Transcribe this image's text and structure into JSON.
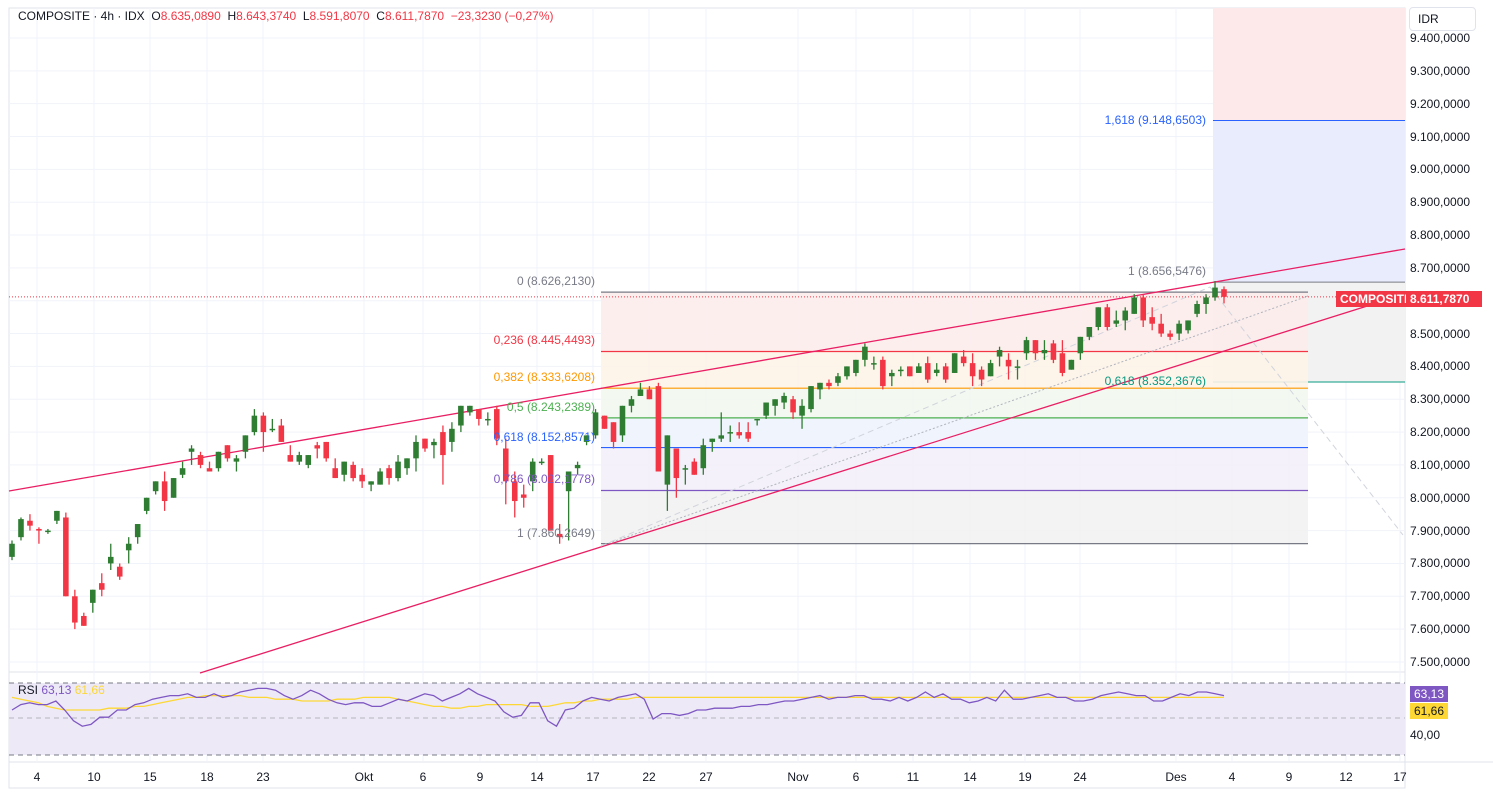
{
  "header": {
    "symbol": "COMPOSITE",
    "interval": "4h",
    "exchange": "IDX",
    "title": "COMPOSITE · 4h · IDX",
    "open_label": "O",
    "open": "8.635,0890",
    "high_label": "H",
    "high": "8.643,3740",
    "low_label": "L",
    "low": "8.591,8070",
    "close_label": "C",
    "close": "8.611,7870",
    "change": "−23,3230 (−0,27%)"
  },
  "currency_button": "IDR",
  "price_axis": {
    "labels": [
      "9.400,0000",
      "9.300,0000",
      "9.200,0000",
      "9.100,0000",
      "9.000,0000",
      "8.900,0000",
      "8.800,0000",
      "8.700,0000",
      "8.500,0000",
      "8.400,0000",
      "8.300,0000",
      "8.200,0000",
      "8.100,0000",
      "8.000,0000",
      "7.900,0000",
      "7.800,0000",
      "7.700,0000",
      "7.600,0000",
      "7.500,0000"
    ],
    "last_price": "8.611,7870",
    "symbol_badge": "COMPOSITE"
  },
  "fib_retracement": {
    "levels": [
      {
        "label": "0 (8.626,2130)",
        "color": "#787b86"
      },
      {
        "label": "0,236 (8.445,4493)",
        "color": "#f23645"
      },
      {
        "label": "0,382 (8.333,6208)",
        "color": "#ff9800"
      },
      {
        "label": "0,5 (8.243,2389)",
        "color": "#4caf50"
      },
      {
        "label": "0,618 (8.152,8571)",
        "color": "#2962ff"
      },
      {
        "label": "0,786 (8.022,1778)",
        "color": "#7e57c2"
      },
      {
        "label": "1 (7.860,2649)",
        "color": "#787b86"
      }
    ]
  },
  "fib_extension": {
    "levels": [
      {
        "label": "1,618 (9.148,6503)",
        "color": "#2962ff"
      },
      {
        "label": "1 (8.656,5476)",
        "color": "#787b86"
      },
      {
        "label": "0,618 (8.352,3676)",
        "color": "#089981"
      }
    ]
  },
  "rsi": {
    "name": "RSI",
    "value": "63,13",
    "ma_value": "61,66",
    "axis_label": "40,00",
    "rsi_color": "#7e57c2",
    "ma_color": "#fdd835"
  },
  "time_axis": {
    "labels": [
      "4",
      "10",
      "15",
      "18",
      "23",
      "Okt",
      "6",
      "9",
      "14",
      "17",
      "22",
      "27",
      "Nov",
      "6",
      "11",
      "14",
      "19",
      "24",
      "Des",
      "4",
      "9",
      "12",
      "17"
    ]
  },
  "colors": {
    "up": "#2e7d32",
    "down": "#f23645",
    "channel": "#e91e63"
  },
  "chart_data": {
    "type": "candlestick",
    "title": "COMPOSITE · 4h · IDX",
    "ylabel": "IDR",
    "ylim": [
      7450,
      9430
    ],
    "x_ticks": [
      "4",
      "10",
      "15",
      "18",
      "23",
      "Okt",
      "6",
      "9",
      "14",
      "17",
      "22",
      "27",
      "Nov",
      "6",
      "11",
      "14",
      "19",
      "24",
      "Des",
      "4",
      "9",
      "12",
      "17"
    ],
    "last": {
      "open": 8635.089,
      "high": 8643.374,
      "low": 8591.807,
      "close": 8611.787,
      "change": -23.323,
      "change_pct": -0.27
    },
    "candles": [
      [
        7820,
        7870,
        7810,
        7860
      ],
      [
        7880,
        7940,
        7870,
        7935
      ],
      [
        7930,
        7950,
        7900,
        7915
      ],
      [
        7905,
        7910,
        7860,
        7900
      ],
      [
        7900,
        7905,
        7890,
        7900
      ],
      [
        7930,
        7960,
        7920,
        7960
      ],
      [
        7940,
        7955,
        7700,
        7700
      ],
      [
        7700,
        7720,
        7600,
        7620
      ],
      [
        7640,
        7650,
        7610,
        7610
      ],
      [
        7680,
        7720,
        7650,
        7720
      ],
      [
        7740,
        7770,
        7700,
        7720
      ],
      [
        7800,
        7860,
        7780,
        7820
      ],
      [
        7790,
        7800,
        7750,
        7760
      ],
      [
        7840,
        7880,
        7800,
        7860
      ],
      [
        7880,
        7910,
        7860,
        7920
      ],
      [
        7960,
        7990,
        7950,
        8000
      ],
      [
        8020,
        8050,
        8010,
        8050
      ],
      [
        8050,
        8080,
        7960,
        7990
      ],
      [
        8000,
        8060,
        8000,
        8060
      ],
      [
        8070,
        8110,
        8060,
        8090
      ],
      [
        8140,
        8160,
        8100,
        8150
      ],
      [
        8130,
        8140,
        8090,
        8100
      ],
      [
        8090,
        8110,
        8080,
        8080
      ],
      [
        8090,
        8140,
        8080,
        8140
      ],
      [
        8160,
        8160,
        8110,
        8120
      ],
      [
        8110,
        8130,
        8080,
        8120
      ],
      [
        8140,
        8170,
        8120,
        8190
      ],
      [
        8200,
        8270,
        8190,
        8250
      ],
      [
        8250,
        8260,
        8140,
        8200
      ],
      [
        8210,
        8240,
        8200,
        8210
      ],
      [
        8220,
        8240,
        8180,
        8170
      ],
      [
        8130,
        8160,
        8110,
        8110
      ],
      [
        8110,
        8140,
        8100,
        8130
      ],
      [
        8100,
        8130,
        8090,
        8130
      ],
      [
        8160,
        8170,
        8120,
        8150
      ],
      [
        8170,
        8160,
        8110,
        8120
      ],
      [
        8090,
        8120,
        8060,
        8060
      ],
      [
        8070,
        8110,
        8050,
        8110
      ],
      [
        8100,
        8110,
        8050,
        8060
      ],
      [
        8070,
        8090,
        8030,
        8050
      ],
      [
        8040,
        8050,
        8020,
        8050
      ],
      [
        8040,
        8090,
        8040,
        8080
      ],
      [
        8090,
        8100,
        8040,
        8060
      ],
      [
        8060,
        8130,
        8050,
        8110
      ],
      [
        8090,
        8120,
        8070,
        8120
      ],
      [
        8120,
        8190,
        8080,
        8170
      ],
      [
        8180,
        8170,
        8140,
        8150
      ],
      [
        8160,
        8180,
        8120,
        8170
      ],
      [
        8200,
        8220,
        8040,
        8130
      ],
      [
        8170,
        8230,
        8140,
        8210
      ],
      [
        8220,
        8280,
        8200,
        8280
      ],
      [
        8260,
        8280,
        8250,
        8280
      ],
      [
        8270,
        8260,
        8220,
        8240
      ],
      [
        8240,
        8260,
        8220,
        8240
      ],
      [
        8270,
        8280,
        8160,
        8180
      ],
      [
        8150,
        8180,
        7980,
        8050
      ],
      [
        8050,
        8080,
        7940,
        7990
      ],
      [
        8010,
        8040,
        7970,
        8000
      ],
      [
        8050,
        8120,
        8020,
        8110
      ],
      [
        8110,
        8120,
        8100,
        8110
      ],
      [
        8130,
        8130,
        7900,
        7900
      ],
      [
        7890,
        7920,
        7860,
        7880
      ],
      [
        8020,
        8080,
        7870,
        8080
      ],
      [
        8090,
        8110,
        8070,
        8100
      ],
      [
        8170,
        8190,
        8160,
        8190
      ],
      [
        8190,
        8270,
        8180,
        8260
      ],
      [
        8250,
        8240,
        8210,
        8210
      ],
      [
        8230,
        8220,
        8150,
        8170
      ],
      [
        8190,
        8280,
        8170,
        8280
      ],
      [
        8280,
        8310,
        8260,
        8300
      ],
      [
        8310,
        8350,
        8320,
        8330
      ],
      [
        8330,
        8340,
        8300,
        8300
      ],
      [
        8340,
        8350,
        8080,
        8080
      ],
      [
        8040,
        8180,
        7960,
        8190
      ],
      [
        8150,
        8140,
        8000,
        8060
      ],
      [
        8090,
        8100,
        8040,
        8090
      ],
      [
        8110,
        8120,
        8080,
        8070
      ],
      [
        8090,
        8180,
        8070,
        8160
      ],
      [
        8170,
        8180,
        8140,
        8180
      ],
      [
        8180,
        8260,
        8170,
        8190
      ],
      [
        8200,
        8220,
        8170,
        8200
      ],
      [
        8200,
        8230,
        8180,
        8190
      ],
      [
        8200,
        8230,
        8170,
        8180
      ],
      [
        8240,
        8240,
        8220,
        8240
      ],
      [
        8250,
        8290,
        8240,
        8290
      ],
      [
        8280,
        8300,
        8250,
        8300
      ],
      [
        8290,
        8320,
        8270,
        8310
      ],
      [
        8300,
        8310,
        8240,
        8260
      ],
      [
        8250,
        8300,
        8210,
        8280
      ],
      [
        8270,
        8340,
        8260,
        8340
      ],
      [
        8330,
        8350,
        8300,
        8350
      ],
      [
        8350,
        8360,
        8330,
        8340
      ],
      [
        8350,
        8380,
        8340,
        8370
      ],
      [
        8370,
        8400,
        8360,
        8400
      ],
      [
        8380,
        8410,
        8370,
        8420
      ],
      [
        8420,
        8470,
        8400,
        8460
      ],
      [
        8410,
        8430,
        8390,
        8410
      ],
      [
        8420,
        8430,
        8330,
        8340
      ],
      [
        8370,
        8390,
        8340,
        8380
      ],
      [
        8390,
        8400,
        8370,
        8390
      ],
      [
        8400,
        8400,
        8380,
        8370
      ],
      [
        8380,
        8410,
        8380,
        8400
      ],
      [
        8410,
        8430,
        8350,
        8360
      ],
      [
        8380,
        8410,
        8370,
        8390
      ],
      [
        8400,
        8410,
        8350,
        8360
      ],
      [
        8380,
        8440,
        8380,
        8440
      ],
      [
        8430,
        8450,
        8400,
        8410
      ],
      [
        8410,
        8440,
        8340,
        8370
      ],
      [
        8390,
        8400,
        8340,
        8360
      ],
      [
        8370,
        8420,
        8370,
        8410
      ],
      [
        8430,
        8460,
        8400,
        8450
      ],
      [
        8420,
        8440,
        8360,
        8400
      ],
      [
        8400,
        8420,
        8360,
        8400
      ],
      [
        8440,
        8490,
        8420,
        8480
      ],
      [
        8480,
        8480,
        8420,
        8440
      ],
      [
        8440,
        8480,
        8420,
        8450
      ],
      [
        8470,
        8480,
        8410,
        8420
      ],
      [
        8440,
        8480,
        8370,
        8380
      ],
      [
        8390,
        8420,
        8390,
        8420
      ],
      [
        8440,
        8490,
        8420,
        8490
      ],
      [
        8490,
        8510,
        8480,
        8520
      ],
      [
        8520,
        8580,
        8510,
        8580
      ],
      [
        8580,
        8590,
        8510,
        8520
      ],
      [
        8530,
        8570,
        8520,
        8540
      ],
      [
        8540,
        8580,
        8510,
        8570
      ],
      [
        8560,
        8620,
        8560,
        8610
      ],
      [
        8610,
        8620,
        8520,
        8540
      ],
      [
        8550,
        8580,
        8510,
        8530
      ],
      [
        8530,
        8560,
        8490,
        8500
      ],
      [
        8500,
        8510,
        8480,
        8490
      ],
      [
        8500,
        8540,
        8480,
        8530
      ],
      [
        8510,
        8540,
        8500,
        8540
      ],
      [
        8560,
        8600,
        8550,
        8590
      ],
      [
        8590,
        8620,
        8560,
        8610
      ],
      [
        8610,
        8660,
        8600,
        8640
      ],
      [
        8635.089,
        8643.374,
        8591.807,
        8611.787
      ]
    ],
    "fib_retracement": {
      "0": 8626.213,
      "0.236": 8445.4493,
      "0.382": 8333.6208,
      "0.5": 8243.2389,
      "0.618": 8152.8571,
      "0.786": 8022.1778,
      "1": 7860.2649
    },
    "fib_extension": {
      "1.618": 9148.6503,
      "1": 8656.5476,
      "0.618": 8352.3676
    },
    "rsi": {
      "value": 63.13,
      "ma": 61.66,
      "bands": [
        30,
        50,
        70
      ]
    }
  }
}
